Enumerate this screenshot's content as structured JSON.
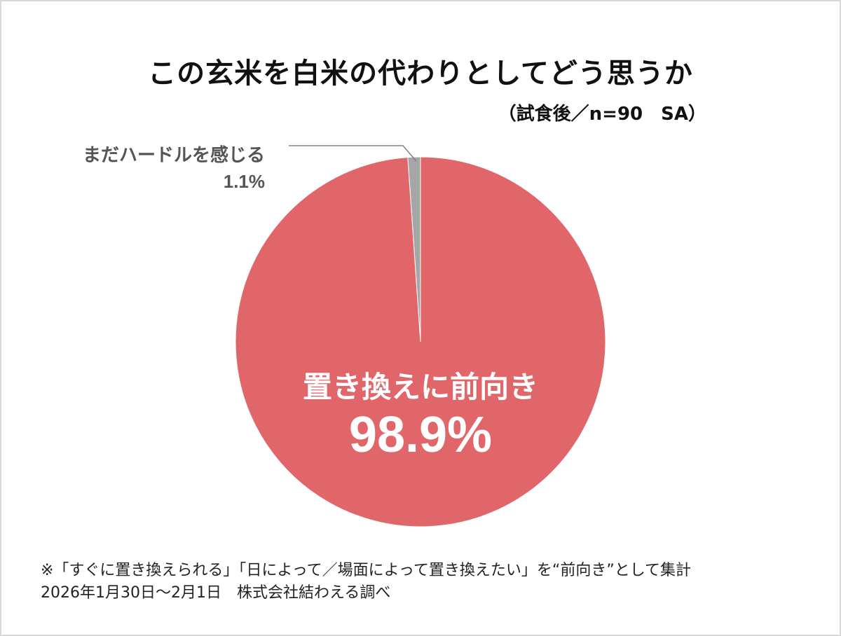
{
  "title": "この玄米を白米の代わりとしてどう思うか",
  "subtitle": "（試食後／n=90　SA）",
  "chart_data": {
    "type": "pie",
    "slices": [
      {
        "label": "置き換えに前向き",
        "value": 98.9,
        "value_label": "98.9%",
        "color": "#e0666a"
      },
      {
        "label": "まだハードルを感じる",
        "value": 1.1,
        "value_label": "1.1%",
        "color": "#a6a6a6"
      }
    ],
    "start": "12 o'clock, clockwise"
  },
  "footnotes": {
    "note": "※「すぐに置き換えられる」「日によって／場面によって置き換えたい」を“前向き”として集計",
    "source": "2026年1月30日～2月1日　株式会社結わえる調べ"
  }
}
